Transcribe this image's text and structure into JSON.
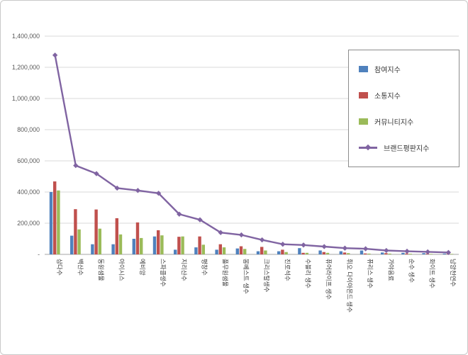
{
  "chart_data": {
    "type": "bar",
    "title": "",
    "categories": [
      "삼다수",
      "백산수",
      "동원샘물",
      "아이시스",
      "에비앙",
      "스파클생수",
      "지리산수",
      "평창수",
      "풀무원샘물",
      "몽베스트 생수",
      "크리스탈생수",
      "진로석수",
      "수블리 생수",
      "퓨어라이프 생수",
      "휘오 다이아몬드 생수",
      "퓨리스 생수",
      "가야음료",
      "순수 생수",
      "화이트 생수",
      "남양천연수"
    ],
    "series": [
      {
        "name": "참여지수",
        "type": "bar",
        "color": "#4F81BD",
        "values": [
          400000,
          120000,
          65000,
          65000,
          100000,
          115000,
          30000,
          45000,
          30000,
          38000,
          20000,
          20000,
          40000,
          25000,
          20000,
          25000,
          12000,
          10000,
          8000,
          5000
        ]
      },
      {
        "name": "소통지수",
        "type": "bar",
        "color": "#C0504D",
        "values": [
          468000,
          290000,
          288000,
          232000,
          205000,
          155000,
          113000,
          115000,
          65000,
          52000,
          48000,
          30000,
          10000,
          15000,
          12000,
          6000,
          8000,
          6000,
          5000,
          4000
        ]
      },
      {
        "name": "커뮤니티지수",
        "type": "bar",
        "color": "#9BBB59",
        "values": [
          410000,
          160000,
          165000,
          128000,
          105000,
          122000,
          115000,
          62000,
          45000,
          35000,
          25000,
          15000,
          10000,
          10000,
          8000,
          5000,
          5000,
          4000,
          3000,
          3000
        ]
      },
      {
        "name": "브랜드평판지수",
        "type": "line",
        "color": "#8064A2",
        "marker": "diamond",
        "values": [
          1278000,
          570000,
          518000,
          425000,
          410000,
          392000,
          258000,
          222000,
          140000,
          125000,
          93000,
          65000,
          60000,
          50000,
          40000,
          36000,
          25000,
          20000,
          16000,
          12000
        ]
      }
    ],
    "ylim": [
      0,
      1400000
    ],
    "ytick_step": 200000,
    "ytick_labels": [
      "-",
      "200,000",
      "400,000",
      "600,000",
      "800,000",
      "1,000,000",
      "1,200,000",
      "1,400,000"
    ],
    "grid": true,
    "legend_position": "top-right",
    "colors": {
      "grid": "#D9D9D9",
      "axis": "#A6A6A6",
      "tick_text": "#595959",
      "category_text": "#3a3a3a"
    }
  }
}
